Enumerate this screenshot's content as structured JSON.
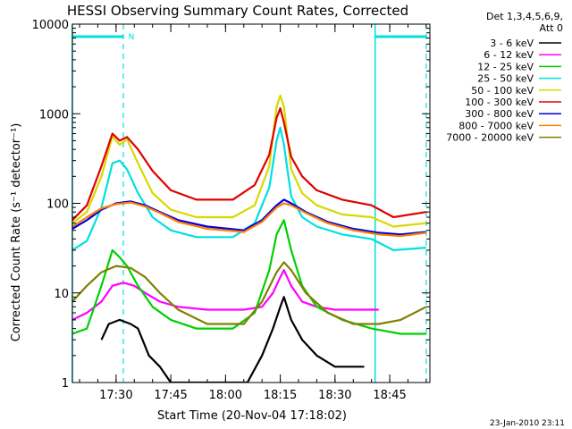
{
  "chart_data": {
    "type": "line",
    "title": "HESSI Observing Summary Count Rates, Corrected",
    "ylabel": "Corrected Count Rate (s⁻¹ detector⁻¹)",
    "xlabel": "Start Time (20-Nov-04 17:18:02)",
    "y_scale": "log",
    "ylim": [
      1,
      10000
    ],
    "xlim": [
      "17:18:02",
      "18:56:00"
    ],
    "y_ticks": [
      1,
      10,
      100,
      1000,
      10000
    ],
    "x_ticks": [
      "17:30",
      "17:45",
      "18:00",
      "18:15",
      "18:30",
      "18:45"
    ],
    "legend_header": [
      "Det 1,3,4,5,6,9,",
      "Att 0"
    ],
    "legend_position": "right",
    "footer": "23-Jan-2010 23:11",
    "night_label": "N",
    "markers": {
      "night_bar_1": [
        "17:18",
        "17:32"
      ],
      "night_bar_2": [
        "18:41",
        "18:55"
      ],
      "dashed_lines": [
        "17:32",
        "18:55"
      ],
      "solid_lines": [
        "17:18",
        "18:41"
      ]
    },
    "series": [
      {
        "name": "3 - 6 keV",
        "color": "#000000",
        "t": [
          "17:26",
          "17:28",
          "17:31",
          "17:34",
          "17:36",
          "17:39",
          "17:42",
          "17:45",
          "17:50",
          "18:00",
          "18:06",
          "18:10",
          "18:13",
          "18:15",
          "18:16",
          "18:18",
          "18:21",
          "18:25",
          "18:30",
          "18:34",
          "18:38"
        ],
        "values": [
          3,
          4.5,
          5,
          4.5,
          4,
          2,
          1.5,
          1,
          1,
          1,
          1,
          2,
          4,
          7,
          9,
          5,
          3,
          2,
          1.5,
          1.5,
          1.5
        ]
      },
      {
        "name": "6 - 12 keV",
        "color": "#ff00ff",
        "t": [
          "17:18",
          "17:22",
          "17:26",
          "17:29",
          "17:32",
          "17:35",
          "17:38",
          "17:42",
          "17:47",
          "17:55",
          "18:05",
          "18:10",
          "18:13",
          "18:15",
          "18:16",
          "18:18",
          "18:21",
          "18:25",
          "18:30",
          "18:35",
          "18:42"
        ],
        "values": [
          5,
          6,
          8,
          12,
          13,
          12,
          10,
          8,
          7,
          6.5,
          6.5,
          7,
          10,
          15,
          18,
          12,
          8,
          7,
          6.5,
          6.5,
          6.5
        ]
      },
      {
        "name": "12 - 25 keV",
        "color": "#00d000",
        "t": [
          "17:18",
          "17:22",
          "17:26",
          "17:29",
          "17:31",
          "17:33",
          "17:36",
          "17:40",
          "17:45",
          "17:52",
          "18:02",
          "18:08",
          "18:12",
          "18:14",
          "18:16",
          "18:18",
          "18:21",
          "18:25",
          "18:32",
          "18:40",
          "18:48",
          "18:55"
        ],
        "values": [
          3.5,
          4,
          12,
          30,
          25,
          20,
          12,
          7,
          5,
          4,
          4,
          6,
          18,
          45,
          65,
          30,
          12,
          7,
          5,
          4,
          3.5,
          3.5
        ]
      },
      {
        "name": "25 - 50 keV",
        "color": "#00e0e0",
        "t": [
          "17:18",
          "17:22",
          "17:26",
          "17:29",
          "17:31",
          "17:33",
          "17:36",
          "17:40",
          "17:45",
          "17:52",
          "18:02",
          "18:08",
          "18:12",
          "18:14",
          "18:15",
          "18:16",
          "18:18",
          "18:21",
          "18:25",
          "18:32",
          "18:40",
          "18:46",
          "18:55"
        ],
        "values": [
          30,
          38,
          90,
          280,
          300,
          240,
          130,
          70,
          50,
          42,
          42,
          60,
          150,
          500,
          700,
          450,
          120,
          70,
          55,
          45,
          40,
          30,
          32
        ]
      },
      {
        "name": "50 - 100 keV",
        "color": "#d8d800",
        "t": [
          "17:18",
          "17:22",
          "17:26",
          "17:29",
          "17:31",
          "17:33",
          "17:36",
          "17:40",
          "17:45",
          "17:52",
          "18:02",
          "18:08",
          "18:12",
          "18:14",
          "18:15",
          "18:16",
          "18:18",
          "18:21",
          "18:25",
          "18:32",
          "18:40",
          "18:46",
          "18:55"
        ],
        "values": [
          60,
          80,
          200,
          560,
          450,
          520,
          280,
          130,
          85,
          70,
          70,
          95,
          260,
          1200,
          1600,
          1200,
          240,
          130,
          95,
          75,
          70,
          55,
          60
        ]
      },
      {
        "name": "100 - 300 keV",
        "color": "#e00000",
        "t": [
          "17:18",
          "17:22",
          "17:26",
          "17:29",
          "17:31",
          "17:33",
          "17:36",
          "17:40",
          "17:45",
          "17:52",
          "18:02",
          "18:08",
          "18:12",
          "18:14",
          "18:15",
          "18:16",
          "18:18",
          "18:21",
          "18:25",
          "18:32",
          "18:40",
          "18:46",
          "18:55"
        ],
        "values": [
          65,
          95,
          260,
          600,
          500,
          550,
          400,
          230,
          140,
          110,
          110,
          160,
          350,
          900,
          1150,
          800,
          330,
          200,
          140,
          110,
          95,
          70,
          80
        ]
      },
      {
        "name": "300 - 800 keV",
        "color": "#0000e0",
        "t": [
          "17:18",
          "17:22",
          "17:26",
          "17:30",
          "17:34",
          "17:38",
          "17:42",
          "17:47",
          "17:55",
          "18:05",
          "18:10",
          "18:14",
          "18:16",
          "18:18",
          "18:22",
          "18:28",
          "18:35",
          "18:42",
          "18:48",
          "18:55"
        ],
        "values": [
          52,
          65,
          85,
          100,
          105,
          95,
          80,
          65,
          55,
          50,
          65,
          95,
          110,
          100,
          80,
          62,
          52,
          47,
          45,
          48
        ]
      },
      {
        "name": "800 - 7000 keV",
        "color": "#ff8000",
        "t": [
          "17:18",
          "17:22",
          "17:26",
          "17:30",
          "17:34",
          "17:38",
          "17:42",
          "17:47",
          "17:55",
          "18:05",
          "18:10",
          "18:14",
          "18:16",
          "18:18",
          "18:22",
          "18:28",
          "18:35",
          "18:42",
          "18:48",
          "18:55"
        ],
        "values": [
          55,
          70,
          88,
          98,
          102,
          92,
          78,
          62,
          52,
          48,
          62,
          90,
          100,
          95,
          78,
          60,
          50,
          45,
          43,
          47
        ]
      },
      {
        "name": "7000 - 20000 keV",
        "color": "#808000",
        "t": [
          "17:18",
          "17:22",
          "17:26",
          "17:30",
          "17:34",
          "17:38",
          "17:42",
          "17:47",
          "17:55",
          "18:05",
          "18:10",
          "18:14",
          "18:16",
          "18:18",
          "18:22",
          "18:28",
          "18:35",
          "18:42",
          "18:48",
          "18:55"
        ],
        "values": [
          8,
          12,
          17,
          20,
          19,
          15,
          10,
          6.5,
          4.5,
          4.5,
          8,
          17,
          22,
          18,
          10,
          6,
          4.5,
          4.5,
          5,
          7
        ]
      }
    ]
  }
}
